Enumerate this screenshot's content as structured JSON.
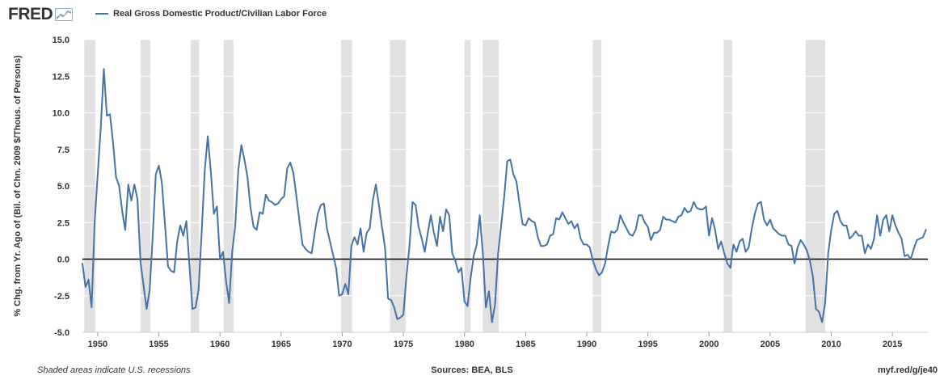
{
  "header": {
    "logo_text": "FRED",
    "series_label": "Real Gross Domestic Product/Civilian Labor Force"
  },
  "footer": {
    "recession_note": "Shaded areas indicate U.S. recessions",
    "sources": "Sources: BEA, BLS",
    "url": "myf.red/g/je40"
  },
  "colors": {
    "line": "#4572a7",
    "recession": "#e1e1e1",
    "zero_line": "#000000",
    "grid": "#ffffff"
  },
  "chart_data": {
    "type": "line",
    "title": "",
    "xlabel": "",
    "ylabel": "% Chg. from Yr. Ago of (Bil. of Chn. 2009 $/Thous. of Persons)",
    "xlim": [
      1948.75,
      2017.9
    ],
    "ylim": [
      -5.0,
      15.0
    ],
    "x_ticks": [
      "1950",
      "1955",
      "1960",
      "1965",
      "1970",
      "1975",
      "1980",
      "1985",
      "1990",
      "1995",
      "2000",
      "2005",
      "2010",
      "2015"
    ],
    "y_ticks": [
      "15.0",
      "12.5",
      "10.0",
      "7.5",
      "5.0",
      "2.5",
      "0.0",
      "-2.5",
      "-5.0"
    ],
    "reference_line": 0.0,
    "recessions": [
      [
        1948.9,
        1949.8
      ],
      [
        1953.5,
        1954.3
      ],
      [
        1957.6,
        1958.3
      ],
      [
        1960.3,
        1961.1
      ],
      [
        1969.9,
        1970.8
      ],
      [
        1973.9,
        1975.2
      ],
      [
        1980.0,
        1980.5
      ],
      [
        1981.5,
        1982.8
      ],
      [
        1990.5,
        1991.2
      ],
      [
        2001.2,
        2001.9
      ],
      [
        2007.9,
        2009.5
      ]
    ],
    "series": [
      {
        "name": "Real Gross Domestic Product/Civilian Labor Force",
        "points": [
          [
            1948.75,
            -0.3
          ],
          [
            1949.0,
            -1.9
          ],
          [
            1949.25,
            -1.4
          ],
          [
            1949.5,
            -3.3
          ],
          [
            1949.75,
            2.5
          ],
          [
            1950.0,
            5.8
          ],
          [
            1950.25,
            9.0
          ],
          [
            1950.5,
            13.0
          ],
          [
            1950.75,
            9.8
          ],
          [
            1951.0,
            9.9
          ],
          [
            1951.25,
            8.0
          ],
          [
            1951.5,
            5.6
          ],
          [
            1951.75,
            5.0
          ],
          [
            1952.0,
            3.3
          ],
          [
            1952.25,
            2.0
          ],
          [
            1952.5,
            5.1
          ],
          [
            1952.75,
            4.0
          ],
          [
            1953.0,
            5.1
          ],
          [
            1953.25,
            4.1
          ],
          [
            1953.5,
            -0.2
          ],
          [
            1953.75,
            -1.8
          ],
          [
            1954.0,
            -3.4
          ],
          [
            1954.25,
            -2.1
          ],
          [
            1954.5,
            1.6
          ],
          [
            1954.75,
            5.8
          ],
          [
            1955.0,
            6.4
          ],
          [
            1955.25,
            5.2
          ],
          [
            1955.5,
            2.4
          ],
          [
            1955.75,
            -0.5
          ],
          [
            1956.0,
            -0.8
          ],
          [
            1956.25,
            -0.9
          ],
          [
            1956.5,
            1.2
          ],
          [
            1956.75,
            2.3
          ],
          [
            1957.0,
            1.6
          ],
          [
            1957.25,
            2.6
          ],
          [
            1957.5,
            -0.4
          ],
          [
            1957.75,
            -3.4
          ],
          [
            1958.0,
            -3.3
          ],
          [
            1958.25,
            -2.1
          ],
          [
            1958.5,
            1.8
          ],
          [
            1958.75,
            6.0
          ],
          [
            1959.0,
            8.4
          ],
          [
            1959.25,
            6.0
          ],
          [
            1959.5,
            3.1
          ],
          [
            1959.75,
            3.6
          ],
          [
            1960.0,
            0.0
          ],
          [
            1960.25,
            0.5
          ],
          [
            1960.5,
            -1.5
          ],
          [
            1960.75,
            -3.0
          ],
          [
            1961.0,
            0.5
          ],
          [
            1961.25,
            2.3
          ],
          [
            1961.5,
            6.1
          ],
          [
            1961.75,
            7.8
          ],
          [
            1962.0,
            6.8
          ],
          [
            1962.25,
            5.6
          ],
          [
            1962.5,
            3.5
          ],
          [
            1962.75,
            2.2
          ],
          [
            1963.0,
            2.0
          ],
          [
            1963.25,
            3.2
          ],
          [
            1963.5,
            3.1
          ],
          [
            1963.75,
            4.4
          ],
          [
            1964.0,
            4.0
          ],
          [
            1964.25,
            3.9
          ],
          [
            1964.5,
            3.7
          ],
          [
            1964.75,
            3.8
          ],
          [
            1965.0,
            4.1
          ],
          [
            1965.25,
            4.3
          ],
          [
            1965.5,
            6.2
          ],
          [
            1965.75,
            6.6
          ],
          [
            1966.0,
            5.9
          ],
          [
            1966.25,
            4.3
          ],
          [
            1966.5,
            2.6
          ],
          [
            1966.75,
            1.0
          ],
          [
            1967.0,
            0.7
          ],
          [
            1967.25,
            0.5
          ],
          [
            1967.5,
            0.4
          ],
          [
            1967.75,
            1.8
          ],
          [
            1968.0,
            3.1
          ],
          [
            1968.25,
            3.7
          ],
          [
            1968.5,
            3.8
          ],
          [
            1968.75,
            2.1
          ],
          [
            1969.0,
            1.2
          ],
          [
            1969.25,
            0.3
          ],
          [
            1969.5,
            -0.6
          ],
          [
            1969.75,
            -2.5
          ],
          [
            1970.0,
            -2.4
          ],
          [
            1970.25,
            -1.7
          ],
          [
            1970.5,
            -2.4
          ],
          [
            1970.75,
            0.9
          ],
          [
            1971.0,
            1.5
          ],
          [
            1971.25,
            1.0
          ],
          [
            1971.5,
            2.1
          ],
          [
            1971.75,
            0.5
          ],
          [
            1972.0,
            1.8
          ],
          [
            1972.25,
            2.1
          ],
          [
            1972.5,
            4.0
          ],
          [
            1972.75,
            5.1
          ],
          [
            1973.0,
            3.7
          ],
          [
            1973.25,
            2.2
          ],
          [
            1973.5,
            0.8
          ],
          [
            1973.75,
            -2.7
          ],
          [
            1974.0,
            -2.8
          ],
          [
            1974.25,
            -3.3
          ],
          [
            1974.5,
            -4.1
          ],
          [
            1974.75,
            -4.0
          ],
          [
            1975.0,
            -3.8
          ],
          [
            1975.25,
            -1.2
          ],
          [
            1975.5,
            0.9
          ],
          [
            1975.75,
            3.9
          ],
          [
            1976.0,
            3.7
          ],
          [
            1976.25,
            2.2
          ],
          [
            1976.5,
            1.4
          ],
          [
            1976.75,
            0.5
          ],
          [
            1977.0,
            1.8
          ],
          [
            1977.25,
            3.0
          ],
          [
            1977.5,
            1.8
          ],
          [
            1977.75,
            0.9
          ],
          [
            1978.0,
            2.9
          ],
          [
            1978.25,
            1.9
          ],
          [
            1978.5,
            3.4
          ],
          [
            1978.75,
            3.0
          ],
          [
            1979.0,
            0.4
          ],
          [
            1979.25,
            -0.1
          ],
          [
            1979.5,
            -0.9
          ],
          [
            1979.75,
            -0.6
          ],
          [
            1980.0,
            -2.9
          ],
          [
            1980.25,
            -3.2
          ],
          [
            1980.5,
            -1.3
          ],
          [
            1980.75,
            0.2
          ],
          [
            1981.0,
            1.0
          ],
          [
            1981.25,
            3.0
          ],
          [
            1981.5,
            0.4
          ],
          [
            1981.75,
            -3.3
          ],
          [
            1982.0,
            -2.2
          ],
          [
            1982.25,
            -4.3
          ],
          [
            1982.5,
            -3.1
          ],
          [
            1982.75,
            0.4
          ],
          [
            1983.0,
            2.3
          ],
          [
            1983.25,
            4.3
          ],
          [
            1983.5,
            6.7
          ],
          [
            1983.75,
            6.8
          ],
          [
            1984.0,
            5.8
          ],
          [
            1984.25,
            5.3
          ],
          [
            1984.5,
            3.8
          ],
          [
            1984.75,
            2.4
          ],
          [
            1985.0,
            2.3
          ],
          [
            1985.25,
            2.8
          ],
          [
            1985.5,
            2.6
          ],
          [
            1985.75,
            2.5
          ],
          [
            1986.0,
            1.5
          ],
          [
            1986.25,
            0.9
          ],
          [
            1986.5,
            0.9
          ],
          [
            1986.75,
            1.0
          ],
          [
            1987.0,
            1.6
          ],
          [
            1987.25,
            1.7
          ],
          [
            1987.5,
            2.8
          ],
          [
            1987.75,
            2.7
          ],
          [
            1988.0,
            3.2
          ],
          [
            1988.25,
            2.8
          ],
          [
            1988.5,
            2.4
          ],
          [
            1988.75,
            2.6
          ],
          [
            1989.0,
            2.1
          ],
          [
            1989.25,
            2.4
          ],
          [
            1989.5,
            1.4
          ],
          [
            1989.75,
            1.0
          ],
          [
            1990.0,
            1.0
          ],
          [
            1990.25,
            0.8
          ],
          [
            1990.5,
            -0.1
          ],
          [
            1990.75,
            -0.7
          ],
          [
            1991.0,
            -1.1
          ],
          [
            1991.25,
            -0.9
          ],
          [
            1991.5,
            -0.3
          ],
          [
            1991.75,
            0.9
          ],
          [
            1992.0,
            1.9
          ],
          [
            1992.25,
            1.8
          ],
          [
            1992.5,
            2.0
          ],
          [
            1992.75,
            3.0
          ],
          [
            1993.0,
            2.5
          ],
          [
            1993.25,
            2.1
          ],
          [
            1993.5,
            1.7
          ],
          [
            1993.75,
            1.6
          ],
          [
            1994.0,
            2.0
          ],
          [
            1994.25,
            3.0
          ],
          [
            1994.5,
            3.0
          ],
          [
            1994.75,
            2.5
          ],
          [
            1995.0,
            2.2
          ],
          [
            1995.25,
            1.3
          ],
          [
            1995.5,
            1.8
          ],
          [
            1995.75,
            1.8
          ],
          [
            1996.0,
            2.0
          ],
          [
            1996.25,
            2.9
          ],
          [
            1996.5,
            2.7
          ],
          [
            1996.75,
            2.7
          ],
          [
            1997.0,
            2.6
          ],
          [
            1997.25,
            2.5
          ],
          [
            1997.5,
            2.9
          ],
          [
            1997.75,
            3.0
          ],
          [
            1998.0,
            3.5
          ],
          [
            1998.25,
            3.2
          ],
          [
            1998.5,
            3.3
          ],
          [
            1998.75,
            3.9
          ],
          [
            1999.0,
            3.5
          ],
          [
            1999.25,
            3.4
          ],
          [
            1999.5,
            3.4
          ],
          [
            1999.75,
            3.6
          ],
          [
            2000.0,
            1.6
          ],
          [
            2000.25,
            2.8
          ],
          [
            2000.5,
            2.0
          ],
          [
            2000.75,
            0.7
          ],
          [
            2001.0,
            1.2
          ],
          [
            2001.25,
            0.4
          ],
          [
            2001.5,
            -0.3
          ],
          [
            2001.75,
            -0.6
          ],
          [
            2002.0,
            1.0
          ],
          [
            2002.25,
            0.5
          ],
          [
            2002.5,
            1.2
          ],
          [
            2002.75,
            1.4
          ],
          [
            2003.0,
            0.5
          ],
          [
            2003.25,
            0.8
          ],
          [
            2003.5,
            2.1
          ],
          [
            2003.75,
            3.1
          ],
          [
            2004.0,
            3.8
          ],
          [
            2004.25,
            3.9
          ],
          [
            2004.5,
            2.7
          ],
          [
            2004.75,
            2.3
          ],
          [
            2005.0,
            2.7
          ],
          [
            2005.25,
            2.1
          ],
          [
            2005.5,
            1.9
          ],
          [
            2005.75,
            1.7
          ],
          [
            2006.0,
            1.6
          ],
          [
            2006.25,
            1.6
          ],
          [
            2006.5,
            1.0
          ],
          [
            2006.75,
            0.9
          ],
          [
            2007.0,
            -0.3
          ],
          [
            2007.25,
            0.8
          ],
          [
            2007.5,
            1.3
          ],
          [
            2007.75,
            1.0
          ],
          [
            2008.0,
            0.6
          ],
          [
            2008.25,
            -0.1
          ],
          [
            2008.5,
            -1.2
          ],
          [
            2008.75,
            -3.4
          ],
          [
            2009.0,
            -3.6
          ],
          [
            2009.25,
            -4.3
          ],
          [
            2009.5,
            -3.0
          ],
          [
            2009.75,
            0.4
          ],
          [
            2010.0,
            2.0
          ],
          [
            2010.25,
            3.1
          ],
          [
            2010.5,
            3.3
          ],
          [
            2010.75,
            2.6
          ],
          [
            2011.0,
            2.3
          ],
          [
            2011.25,
            2.3
          ],
          [
            2011.5,
            1.4
          ],
          [
            2011.75,
            1.6
          ],
          [
            2012.0,
            1.9
          ],
          [
            2012.25,
            1.6
          ],
          [
            2012.5,
            1.6
          ],
          [
            2012.75,
            0.4
          ],
          [
            2013.0,
            1.0
          ],
          [
            2013.25,
            0.7
          ],
          [
            2013.5,
            1.4
          ],
          [
            2013.75,
            3.0
          ],
          [
            2014.0,
            1.6
          ],
          [
            2014.25,
            2.7
          ],
          [
            2014.5,
            3.0
          ],
          [
            2014.75,
            1.9
          ],
          [
            2015.0,
            3.0
          ],
          [
            2015.25,
            2.3
          ],
          [
            2015.5,
            1.8
          ],
          [
            2015.75,
            1.4
          ],
          [
            2016.0,
            0.2
          ],
          [
            2016.25,
            0.3
          ],
          [
            2016.5,
            0.0
          ],
          [
            2016.75,
            0.7
          ],
          [
            2017.0,
            1.3
          ],
          [
            2017.25,
            1.4
          ],
          [
            2017.5,
            1.5
          ],
          [
            2017.75,
            2.0
          ]
        ]
      }
    ]
  }
}
